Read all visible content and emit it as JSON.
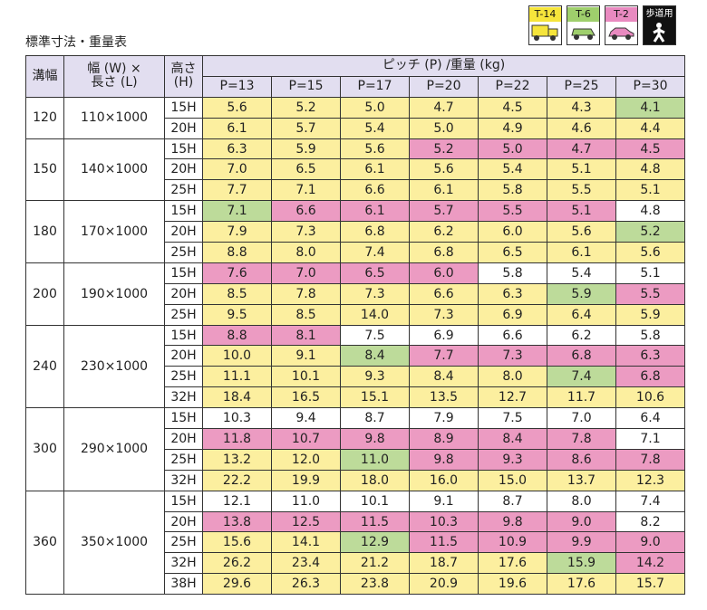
{
  "title": "標準寸法・重量表",
  "legend": [
    {
      "label": "T-14",
      "icon": "truck-icon",
      "color": "#f6e53b"
    },
    {
      "label": "T-6",
      "icon": "car-icon",
      "color": "#9fcf6c"
    },
    {
      "label": "T-2",
      "icon": "car-icon",
      "color": "#e98ac0"
    },
    {
      "label": "歩道用",
      "icon": "pedestrian-icon",
      "color": "#111111"
    }
  ],
  "header": {
    "col_width": "溝幅",
    "col_size_line1": "幅 (W) ×",
    "col_size_line2": "長さ (L)",
    "col_height_line1": "高さ",
    "col_height_line2": "(H)",
    "pitch_title": "ピッチ (P) /重量 (kg)",
    "pitches": [
      "P=13",
      "P=15",
      "P=17",
      "P=20",
      "P=22",
      "P=25",
      "P=30"
    ]
  },
  "cell_colors": {
    "y": "#fcef9f",
    "p": "#ec9bc2",
    "g": "#bddb9a",
    "w": "#ffffff"
  },
  "groups": [
    {
      "width": "120",
      "size": "110×1000",
      "rows": [
        {
          "h": "15H",
          "vals": [
            "5.6",
            "5.2",
            "5.0",
            "4.7",
            "4.5",
            "4.3",
            "4.1"
          ],
          "cls": [
            "y",
            "y",
            "y",
            "y",
            "y",
            "y",
            "g"
          ]
        },
        {
          "h": "20H",
          "vals": [
            "6.1",
            "5.7",
            "5.4",
            "5.0",
            "4.9",
            "4.6",
            "4.4"
          ],
          "cls": [
            "y",
            "y",
            "y",
            "y",
            "y",
            "y",
            "y"
          ]
        }
      ]
    },
    {
      "width": "150",
      "size": "140×1000",
      "rows": [
        {
          "h": "15H",
          "vals": [
            "6.3",
            "5.9",
            "5.6",
            "5.2",
            "5.0",
            "4.7",
            "4.5"
          ],
          "cls": [
            "y",
            "y",
            "y",
            "p",
            "p",
            "p",
            "p"
          ]
        },
        {
          "h": "20H",
          "vals": [
            "7.0",
            "6.5",
            "6.1",
            "5.6",
            "5.4",
            "5.1",
            "4.8"
          ],
          "cls": [
            "y",
            "y",
            "y",
            "y",
            "y",
            "y",
            "y"
          ]
        },
        {
          "h": "25H",
          "vals": [
            "7.7",
            "7.1",
            "6.6",
            "6.1",
            "5.8",
            "5.5",
            "5.1"
          ],
          "cls": [
            "y",
            "y",
            "y",
            "y",
            "y",
            "y",
            "y"
          ]
        }
      ]
    },
    {
      "width": "180",
      "size": "170×1000",
      "rows": [
        {
          "h": "15H",
          "vals": [
            "7.1",
            "6.6",
            "6.1",
            "5.7",
            "5.5",
            "5.1",
            "4.8"
          ],
          "cls": [
            "g",
            "p",
            "p",
            "p",
            "p",
            "p",
            "w"
          ]
        },
        {
          "h": "20H",
          "vals": [
            "7.9",
            "7.3",
            "6.8",
            "6.2",
            "6.0",
            "5.6",
            "5.2"
          ],
          "cls": [
            "y",
            "y",
            "y",
            "y",
            "y",
            "y",
            "g"
          ]
        },
        {
          "h": "25H",
          "vals": [
            "8.8",
            "8.0",
            "7.4",
            "6.8",
            "6.5",
            "6.1",
            "5.6"
          ],
          "cls": [
            "y",
            "y",
            "y",
            "y",
            "y",
            "y",
            "y"
          ]
        }
      ]
    },
    {
      "width": "200",
      "size": "190×1000",
      "rows": [
        {
          "h": "15H",
          "vals": [
            "7.6",
            "7.0",
            "6.5",
            "6.0",
            "5.8",
            "5.4",
            "5.1"
          ],
          "cls": [
            "p",
            "p",
            "p",
            "p",
            "w",
            "w",
            "w"
          ]
        },
        {
          "h": "20H",
          "vals": [
            "8.5",
            "7.8",
            "7.3",
            "6.6",
            "6.3",
            "5.9",
            "5.5"
          ],
          "cls": [
            "y",
            "y",
            "y",
            "y",
            "y",
            "g",
            "p"
          ]
        },
        {
          "h": "25H",
          "vals": [
            "9.5",
            "8.5",
            "14.0",
            "7.3",
            "6.9",
            "6.4",
            "5.9"
          ],
          "cls": [
            "y",
            "y",
            "y",
            "y",
            "y",
            "y",
            "y"
          ]
        }
      ]
    },
    {
      "width": "240",
      "size": "230×1000",
      "rows": [
        {
          "h": "15H",
          "vals": [
            "8.8",
            "8.1",
            "7.5",
            "6.9",
            "6.6",
            "6.2",
            "5.8"
          ],
          "cls": [
            "p",
            "p",
            "w",
            "w",
            "w",
            "w",
            "w"
          ]
        },
        {
          "h": "20H",
          "vals": [
            "10.0",
            "9.1",
            "8.4",
            "7.7",
            "7.3",
            "6.8",
            "6.3"
          ],
          "cls": [
            "y",
            "y",
            "g",
            "p",
            "p",
            "p",
            "p"
          ]
        },
        {
          "h": "25H",
          "vals": [
            "11.1",
            "10.1",
            "9.3",
            "8.4",
            "8.0",
            "7.4",
            "6.8"
          ],
          "cls": [
            "y",
            "y",
            "y",
            "y",
            "y",
            "g",
            "p"
          ]
        },
        {
          "h": "32H",
          "vals": [
            "18.4",
            "16.5",
            "15.1",
            "13.5",
            "12.7",
            "11.7",
            "10.6"
          ],
          "cls": [
            "y",
            "y",
            "y",
            "y",
            "y",
            "y",
            "y"
          ]
        }
      ]
    },
    {
      "width": "300",
      "size": "290×1000",
      "rows": [
        {
          "h": "15H",
          "vals": [
            "10.3",
            "9.4",
            "8.7",
            "7.9",
            "7.5",
            "7.0",
            "6.4"
          ],
          "cls": [
            "w",
            "w",
            "w",
            "w",
            "w",
            "w",
            "w"
          ]
        },
        {
          "h": "20H",
          "vals": [
            "11.8",
            "10.7",
            "9.8",
            "8.9",
            "8.4",
            "7.8",
            "7.1"
          ],
          "cls": [
            "p",
            "p",
            "p",
            "p",
            "p",
            "p",
            "w"
          ]
        },
        {
          "h": "25H",
          "vals": [
            "13.2",
            "12.0",
            "11.0",
            "9.8",
            "9.3",
            "8.6",
            "7.8"
          ],
          "cls": [
            "y",
            "y",
            "g",
            "p",
            "p",
            "p",
            "p"
          ]
        },
        {
          "h": "32H",
          "vals": [
            "22.2",
            "19.9",
            "18.0",
            "16.0",
            "15.0",
            "13.7",
            "12.3"
          ],
          "cls": [
            "y",
            "y",
            "y",
            "y",
            "y",
            "y",
            "y"
          ]
        }
      ]
    },
    {
      "width": "360",
      "size": "350×1000",
      "rows": [
        {
          "h": "15H",
          "vals": [
            "12.1",
            "11.0",
            "10.1",
            "9.1",
            "8.7",
            "8.0",
            "7.4"
          ],
          "cls": [
            "w",
            "w",
            "w",
            "w",
            "w",
            "w",
            "w"
          ]
        },
        {
          "h": "20H",
          "vals": [
            "13.8",
            "12.5",
            "11.5",
            "10.3",
            "9.8",
            "9.0",
            "8.2"
          ],
          "cls": [
            "p",
            "p",
            "p",
            "p",
            "p",
            "p",
            "w"
          ]
        },
        {
          "h": "25H",
          "vals": [
            "15.6",
            "14.1",
            "12.9",
            "11.5",
            "10.9",
            "9.9",
            "9.0"
          ],
          "cls": [
            "y",
            "y",
            "g",
            "p",
            "p",
            "p",
            "p"
          ]
        },
        {
          "h": "32H",
          "vals": [
            "26.2",
            "23.4",
            "21.2",
            "18.7",
            "17.6",
            "15.9",
            "14.2"
          ],
          "cls": [
            "y",
            "y",
            "y",
            "y",
            "y",
            "g",
            "p"
          ]
        },
        {
          "h": "38H",
          "vals": [
            "29.6",
            "26.3",
            "23.8",
            "20.9",
            "19.6",
            "17.6",
            "15.7"
          ],
          "cls": [
            "y",
            "y",
            "y",
            "y",
            "y",
            "y",
            "y"
          ]
        }
      ]
    }
  ]
}
